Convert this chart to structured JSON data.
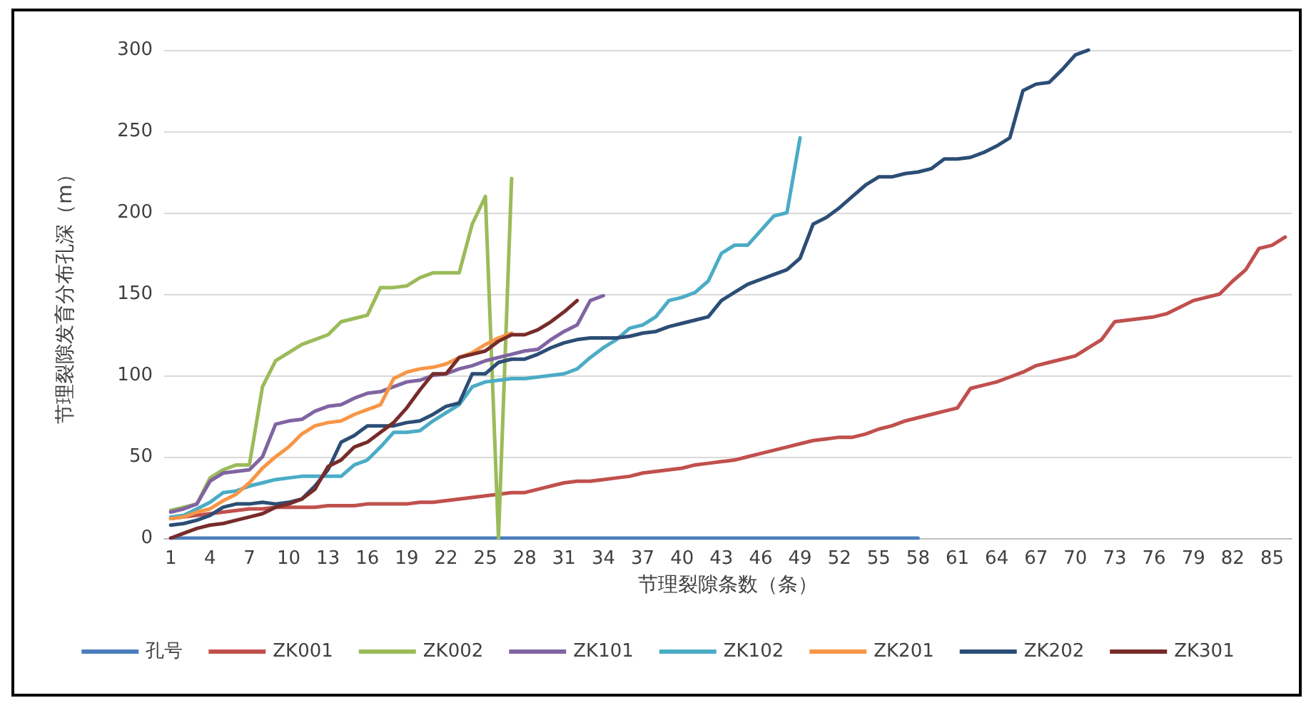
{
  "chart_data": {
    "type": "line",
    "xlabel": "节理裂隙条数（条）",
    "ylabel": "节理裂隙发育分布孔深（m）",
    "categories": [
      "1",
      null,
      null,
      "4",
      null,
      null,
      "7",
      null,
      null,
      "10",
      null,
      null,
      "13",
      null,
      null,
      "16",
      null,
      null,
      "19",
      null,
      null,
      "22",
      null,
      null,
      "25",
      null,
      null,
      "28",
      null,
      null,
      "31",
      null,
      null,
      "34",
      null,
      null,
      "37",
      null,
      null,
      "40",
      null,
      null,
      "43",
      null,
      null,
      "46",
      null,
      null,
      "49",
      null,
      null,
      "52",
      null,
      null,
      "55",
      null,
      null,
      "58",
      null,
      null,
      "61",
      null,
      null,
      "64",
      null,
      null,
      "67",
      null,
      null,
      "70",
      null,
      null,
      "73",
      null,
      null,
      "76",
      null,
      null,
      "79",
      null,
      null,
      "82",
      null,
      null,
      "85",
      null
    ],
    "ylim": [
      0,
      300
    ],
    "yticks": [
      0,
      50,
      100,
      150,
      200,
      250,
      300
    ],
    "grid": "y",
    "legend": "bottom",
    "marker": "none",
    "line_style": "solid",
    "series": [
      {
        "name": "孔号",
        "color": "#4a7ebb",
        "values": [
          0,
          0,
          0,
          0,
          0,
          0,
          0,
          0,
          0,
          0,
          0,
          0,
          0,
          0,
          0,
          0,
          0,
          0,
          0,
          0,
          0,
          0,
          0,
          0,
          0,
          0,
          0,
          0,
          0,
          0,
          0,
          0,
          0,
          0,
          0,
          0,
          0,
          0,
          0,
          0,
          0,
          0,
          0,
          0,
          0,
          0,
          0,
          0,
          0,
          0,
          0,
          0,
          0,
          0,
          0,
          0,
          0,
          0,
          null,
          null,
          null,
          null,
          null,
          null,
          null,
          null,
          null,
          null,
          null,
          null,
          null,
          null,
          null,
          null,
          null,
          null,
          null,
          null,
          null,
          null,
          null,
          null,
          null,
          null,
          null,
          null
        ]
      },
      {
        "name": "ZK001",
        "color": "#c0504d",
        "values": [
          12,
          13,
          14,
          15,
          16,
          17,
          18,
          18,
          19,
          19,
          19,
          19,
          20,
          20,
          20,
          21,
          21,
          21,
          21,
          22,
          22,
          23,
          24,
          25,
          26,
          27,
          28,
          28,
          30,
          32,
          34,
          35,
          35,
          36,
          37,
          38,
          40,
          41,
          42,
          43,
          45,
          46,
          47,
          48,
          50,
          52,
          54,
          56,
          58,
          60,
          61,
          62,
          62,
          64,
          67,
          69,
          72,
          74,
          76,
          78,
          80,
          92,
          94,
          96,
          99,
          102,
          106,
          108,
          110,
          112,
          117,
          122,
          133,
          134,
          135,
          136,
          138,
          142,
          146,
          148,
          150,
          158,
          165,
          178,
          180,
          185
        ]
      },
      {
        "name": "ZK002",
        "color": "#9bbb59",
        "values": [
          17,
          19,
          21,
          37,
          42,
          45,
          45,
          93,
          109,
          114,
          119,
          122,
          125,
          133,
          135,
          137,
          154,
          154,
          155,
          160,
          163,
          163,
          163,
          193,
          210,
          0,
          221,
          null,
          null,
          null,
          null,
          null,
          null,
          null,
          null,
          null,
          null,
          null,
          null,
          null,
          null,
          null,
          null,
          null,
          null,
          null,
          null,
          null,
          null,
          null,
          null,
          null,
          null,
          null,
          null,
          null,
          null,
          null,
          null,
          null,
          null,
          null,
          null,
          null,
          null,
          null,
          null,
          null,
          null,
          null,
          null,
          null,
          null,
          null,
          null,
          null,
          null,
          null,
          null,
          null,
          null,
          null,
          null,
          null,
          null,
          null
        ]
      },
      {
        "name": "ZK101",
        "color": "#8064a2",
        "values": [
          16,
          18,
          21,
          35,
          40,
          41,
          42,
          50,
          70,
          72,
          73,
          78,
          81,
          82,
          86,
          89,
          90,
          93,
          96,
          97,
          100,
          101,
          104,
          106,
          109,
          111,
          113,
          115,
          116,
          122,
          127,
          131,
          146,
          149,
          null,
          null,
          null,
          null,
          null,
          null,
          null,
          null,
          null,
          null,
          null,
          null,
          null,
          null,
          null,
          null,
          null,
          null,
          null,
          null,
          null,
          null,
          null,
          null,
          null,
          null,
          null,
          null,
          null,
          null,
          null,
          null,
          null,
          null,
          null,
          null,
          null,
          null,
          null,
          null,
          null,
          null,
          null,
          null,
          null,
          null,
          null,
          null,
          null,
          null,
          null,
          null
        ]
      },
      {
        "name": "ZK102",
        "color": "#4bacc6",
        "values": [
          13,
          14,
          18,
          22,
          28,
          29,
          32,
          34,
          36,
          37,
          38,
          38,
          38,
          38,
          45,
          48,
          56,
          65,
          65,
          66,
          72,
          77,
          82,
          93,
          96,
          97,
          98,
          98,
          99,
          100,
          101,
          104,
          111,
          117,
          122,
          129,
          131,
          136,
          146,
          148,
          151,
          158,
          175,
          180,
          180,
          189,
          198,
          200,
          246,
          null,
          null,
          null,
          null,
          null,
          null,
          null,
          null,
          null,
          null,
          null,
          null,
          null,
          null,
          null,
          null,
          null,
          null,
          null,
          null,
          null,
          null,
          null,
          null,
          null,
          null,
          null,
          null,
          null,
          null,
          null,
          null,
          null,
          null,
          null,
          null,
          null
        ]
      },
      {
        "name": "ZK201",
        "color": "#f79646",
        "values": [
          12,
          13,
          16,
          18,
          23,
          27,
          34,
          43,
          50,
          56,
          64,
          69,
          71,
          72,
          76,
          79,
          82,
          98,
          102,
          104,
          105,
          107,
          111,
          114,
          119,
          123,
          126,
          null,
          null,
          null,
          null,
          null,
          null,
          null,
          null,
          null,
          null,
          null,
          null,
          null,
          null,
          null,
          null,
          null,
          null,
          null,
          null,
          null,
          null,
          null,
          null,
          null,
          null,
          null,
          null,
          null,
          null,
          null,
          null,
          null,
          null,
          null,
          null,
          null,
          null,
          null,
          null,
          null,
          null,
          null,
          null,
          null,
          null,
          null,
          null,
          null,
          null,
          null,
          null,
          null,
          null,
          null,
          null,
          null,
          null,
          null
        ]
      },
      {
        "name": "ZK202",
        "color": "#2c4d75",
        "values": [
          8,
          9,
          11,
          14,
          19,
          21,
          21,
          22,
          21,
          22,
          24,
          32,
          42,
          59,
          63,
          69,
          69,
          69,
          71,
          72,
          76,
          81,
          83,
          101,
          101,
          108,
          110,
          110,
          113,
          117,
          120,
          122,
          123,
          123,
          123,
          124,
          126,
          127,
          130,
          132,
          134,
          136,
          146,
          151,
          156,
          159,
          162,
          165,
          172,
          193,
          197,
          203,
          210,
          217,
          222,
          222,
          224,
          225,
          227,
          233,
          233,
          234,
          237,
          241,
          246,
          275,
          279,
          280,
          288,
          297,
          300,
          null,
          null,
          null,
          null,
          null,
          null,
          null,
          null,
          null,
          null,
          null,
          null,
          null,
          null,
          null
        ]
      },
      {
        "name": "ZK301",
        "color": "#772c2a",
        "values": [
          0,
          3,
          6,
          8,
          9,
          11,
          13,
          15,
          19,
          21,
          24,
          30,
          44,
          48,
          56,
          59,
          65,
          71,
          80,
          91,
          101,
          101,
          111,
          113,
          115,
          121,
          125,
          125,
          128,
          133,
          139,
          146,
          null,
          null,
          null,
          null,
          null,
          null,
          null,
          null,
          null,
          null,
          null,
          null,
          null,
          null,
          null,
          null,
          null,
          null,
          null,
          null,
          null,
          null,
          null,
          null,
          null,
          null,
          null,
          null,
          null,
          null,
          null,
          null,
          null,
          null,
          null,
          null,
          null,
          null,
          null,
          null,
          null,
          null,
          null,
          null,
          null,
          null,
          null,
          null,
          null,
          null,
          null,
          null,
          null,
          null
        ]
      }
    ]
  }
}
